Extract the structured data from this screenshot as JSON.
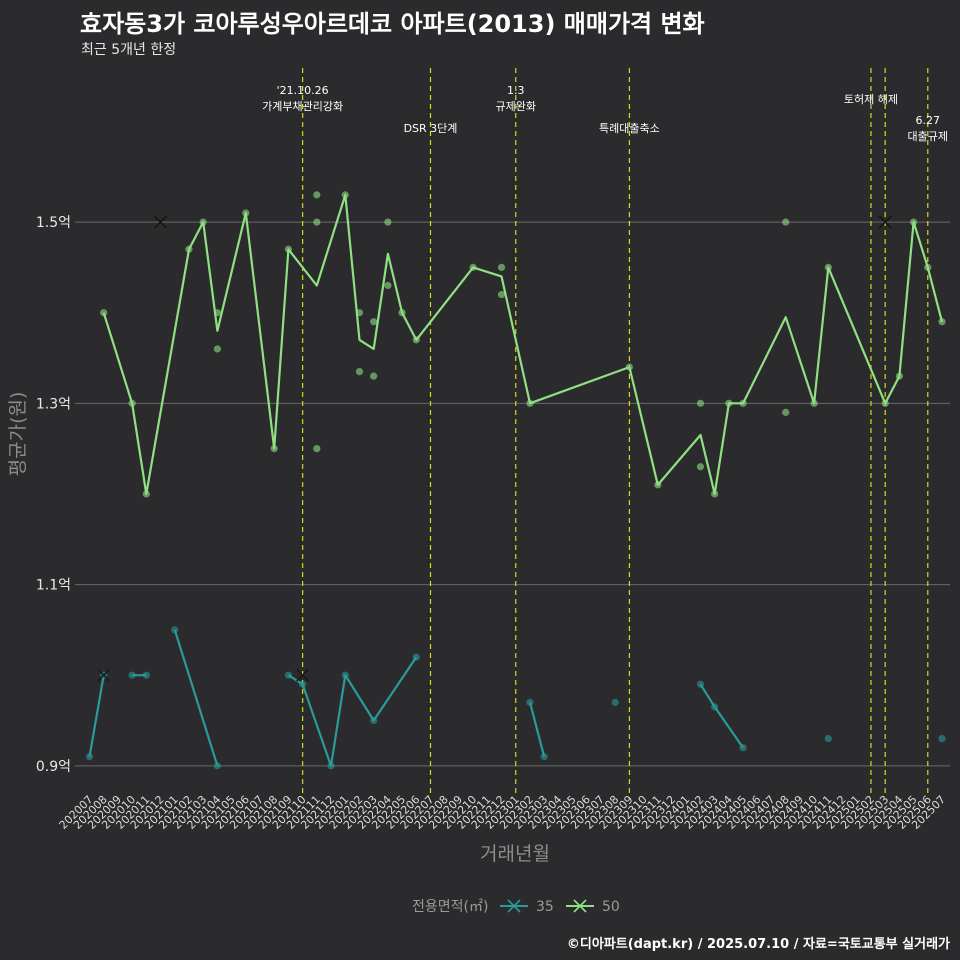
{
  "title": "효자동3가 코아루성우아르데코 아파트(2013) 매매가격 변화",
  "subtitle": "최근 5개년 한정",
  "caption": "©디아파트(dapt.kr) / 2025.07.10 / 자료=국토교통부 실거래가",
  "chart_data": {
    "type": "line",
    "xlabel": "거래년월",
    "ylabel": "평균가(원)",
    "ylim": [
      0.87,
      1.67
    ],
    "yticks": [
      {
        "value": 0.9,
        "label": "0.9억"
      },
      {
        "value": 1.1,
        "label": "1.1억"
      },
      {
        "value": 1.3,
        "label": "1.3억"
      },
      {
        "value": 1.5,
        "label": "1.5억"
      }
    ],
    "categories": [
      "202007",
      "202008",
      "202009",
      "202010",
      "202011",
      "202012",
      "202101",
      "202102",
      "202103",
      "202104",
      "202105",
      "202106",
      "202107",
      "202108",
      "202109",
      "202110",
      "202111",
      "202112",
      "202201",
      "202202",
      "202203",
      "202204",
      "202205",
      "202206",
      "202207",
      "202208",
      "202209",
      "202210",
      "202211",
      "202212",
      "202301",
      "202302",
      "202303",
      "202304",
      "202305",
      "202306",
      "202307",
      "202308",
      "202309",
      "202310",
      "202311",
      "202312",
      "202401",
      "202402",
      "202403",
      "202404",
      "202405",
      "202406",
      "202407",
      "202408",
      "202409",
      "202410",
      "202411",
      "202412",
      "202501",
      "202502",
      "202503",
      "202504",
      "202505",
      "202506",
      "202507"
    ],
    "events": [
      {
        "x": 15,
        "lines": [
          "'21.10.26",
          "가계부채관리강화"
        ],
        "row": 0
      },
      {
        "x": 24,
        "lines": [
          "DSR 3단계"
        ],
        "row": 2
      },
      {
        "x": 30,
        "lines": [
          "1.3",
          "규제완화"
        ],
        "row": 0
      },
      {
        "x": 38,
        "lines": [
          "특례대출축소"
        ],
        "row": 2
      },
      {
        "x": 55,
        "lines": [
          "토허제 해제"
        ],
        "row": 1
      },
      {
        "x": 56,
        "lines": [],
        "row": 1
      },
      {
        "x": 59,
        "lines": [
          "6.27",
          "대출규제"
        ],
        "row": 3
      }
    ],
    "legend": {
      "title": "전용면적(㎡)",
      "position": "bottom"
    },
    "series": [
      {
        "name": "35",
        "color": "#2a9a9a",
        "line": [
          [
            0,
            0.91
          ],
          [
            1,
            1.0
          ],
          null,
          [
            3,
            1.0
          ],
          [
            4,
            1.0
          ],
          null,
          [
            6,
            1.05
          ],
          [
            9,
            0.9
          ],
          null,
          [
            14,
            1.0
          ],
          [
            15,
            0.99
          ],
          [
            17,
            0.9
          ],
          [
            18,
            1.0
          ],
          [
            20,
            0.95
          ],
          [
            23,
            1.02
          ],
          null,
          [
            31,
            0.97
          ],
          [
            32,
            0.91
          ],
          null,
          [
            43,
            0.99
          ],
          [
            44,
            0.965
          ],
          [
            46,
            0.92
          ]
        ],
        "points": [
          [
            0,
            0.91
          ],
          [
            1,
            1.0
          ],
          [
            3,
            1.0
          ],
          [
            4,
            1.0
          ],
          [
            6,
            1.05
          ],
          [
            9,
            0.9
          ],
          [
            14,
            1.0
          ],
          [
            15,
            0.99
          ],
          [
            17,
            0.9
          ],
          [
            18,
            1.0
          ],
          [
            20,
            0.95
          ],
          [
            23,
            1.02
          ],
          [
            31,
            0.97
          ],
          [
            32,
            0.91
          ],
          [
            37,
            0.97
          ],
          [
            43,
            0.99
          ],
          [
            44,
            0.965
          ],
          [
            46,
            0.92
          ],
          [
            52,
            0.93
          ],
          [
            60,
            0.93
          ]
        ],
        "markers": [
          [
            1,
            1.0
          ],
          [
            15,
            1.0
          ]
        ]
      },
      {
        "name": "50",
        "color": "#90e083",
        "line": [
          [
            1,
            1.4
          ],
          [
            3,
            1.3
          ],
          [
            4,
            1.2
          ],
          [
            7,
            1.47
          ],
          [
            8,
            1.5
          ],
          [
            9,
            1.38
          ],
          [
            11,
            1.51
          ],
          [
            13,
            1.25
          ],
          [
            14,
            1.47
          ],
          [
            16,
            1.43
          ],
          [
            18,
            1.53
          ],
          [
            19,
            1.37
          ],
          [
            20,
            1.36
          ],
          [
            21,
            1.465
          ],
          [
            22,
            1.4
          ],
          [
            23,
            1.37
          ],
          [
            27,
            1.45
          ],
          [
            29,
            1.44
          ],
          [
            31,
            1.3
          ],
          [
            38,
            1.34
          ],
          [
            40,
            1.21
          ],
          [
            43,
            1.265
          ],
          [
            44,
            1.2
          ],
          [
            45,
            1.3
          ],
          [
            46,
            1.3
          ],
          [
            49,
            1.395
          ],
          [
            51,
            1.3
          ],
          [
            52,
            1.45
          ],
          [
            56,
            1.3
          ],
          [
            57,
            1.33
          ],
          [
            58,
            1.5
          ],
          [
            59,
            1.45
          ],
          [
            60,
            1.39
          ]
        ],
        "points": [
          [
            1,
            1.4
          ],
          [
            3,
            1.3
          ],
          [
            4,
            1.2
          ],
          [
            7,
            1.47
          ],
          [
            8,
            1.5
          ],
          [
            9,
            1.4
          ],
          [
            9,
            1.36
          ],
          [
            11,
            1.51
          ],
          [
            13,
            1.25
          ],
          [
            14,
            1.47
          ],
          [
            16,
            1.53
          ],
          [
            16,
            1.5
          ],
          [
            16,
            1.25
          ],
          [
            18,
            1.53
          ],
          [
            19,
            1.4
          ],
          [
            19,
            1.335
          ],
          [
            20,
            1.39
          ],
          [
            20,
            1.33
          ],
          [
            21,
            1.5
          ],
          [
            21,
            1.43
          ],
          [
            22,
            1.4
          ],
          [
            23,
            1.37
          ],
          [
            27,
            1.45
          ],
          [
            29,
            1.45
          ],
          [
            29,
            1.42
          ],
          [
            31,
            1.3
          ],
          [
            38,
            1.34
          ],
          [
            40,
            1.21
          ],
          [
            43,
            1.3
          ],
          [
            43,
            1.23
          ],
          [
            44,
            1.2
          ],
          [
            45,
            1.3
          ],
          [
            46,
            1.3
          ],
          [
            49,
            1.5
          ],
          [
            49,
            1.29
          ],
          [
            51,
            1.3
          ],
          [
            52,
            1.45
          ],
          [
            56,
            1.3
          ],
          [
            57,
            1.33
          ],
          [
            58,
            1.5
          ],
          [
            59,
            1.45
          ],
          [
            60,
            1.39
          ]
        ],
        "markers": [
          [
            5,
            1.5
          ],
          [
            56,
            1.5
          ]
        ]
      }
    ]
  }
}
